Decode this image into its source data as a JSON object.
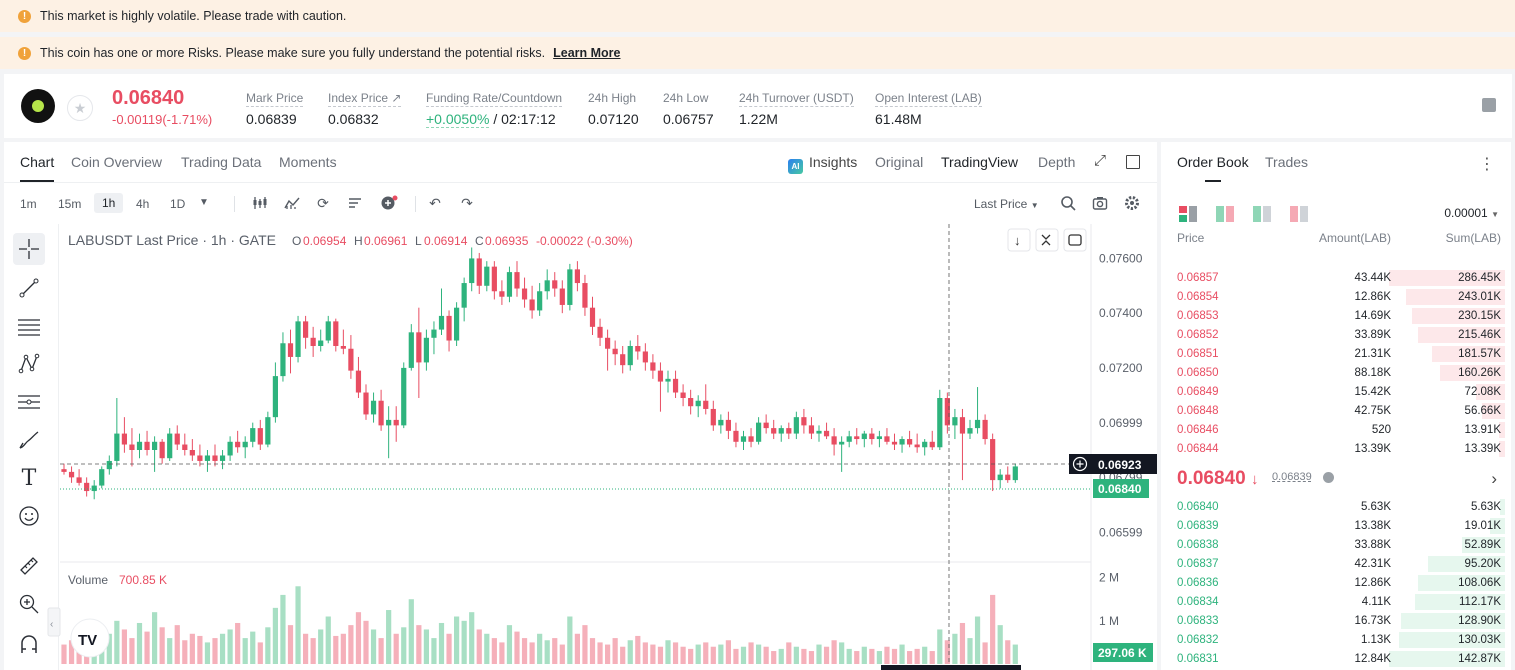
{
  "banners": {
    "volatility": "This market is highly volatile. Please trade with caution.",
    "risk": "This coin has one or more Risks. Please make sure you fully understand the potential risks.",
    "learn_more": "Learn More"
  },
  "ticker": {
    "last_price": "0.06840",
    "change": "-0.00119(-1.71%)",
    "stats": [
      {
        "label": "Mark Price",
        "value": "0.06839"
      },
      {
        "label": "Index Price ↗",
        "value": "0.06832"
      },
      {
        "label": "Funding Rate/Countdown",
        "value": "+0.0050%",
        "value2": "/ 02:17:12"
      },
      {
        "label": "24h High",
        "value": "0.07120"
      },
      {
        "label": "24h Low",
        "value": "0.06757"
      },
      {
        "label": "24h Turnover (USDT)",
        "value": "1.22M"
      },
      {
        "label": "Open Interest (LAB)",
        "value": "61.48M"
      }
    ]
  },
  "chart_tabs": [
    "Chart",
    "Coin Overview",
    "Trading Data",
    "Moments"
  ],
  "chart_views": {
    "insights": "Insights",
    "original": "Original",
    "tradingview": "TradingView",
    "depth": "Depth"
  },
  "intervals": [
    "1m",
    "15m",
    "1h",
    "4h",
    "1D"
  ],
  "selected_interval": "1h",
  "price_source": "Last Price",
  "legend": {
    "title": "LABUSDT Last Price · 1h · GATE",
    "o_lbl": "O",
    "o": "0.06954",
    "h_lbl": "H",
    "h": "0.06961",
    "l_lbl": "L",
    "l": "0.06914",
    "c_lbl": "C",
    "c": "0.06935",
    "chg": "-0.00022 (-0.30%)"
  },
  "volume_legend": {
    "label": "Volume",
    "value": "700.85 K"
  },
  "price_axis": [
    "0.07600",
    "0.07400",
    "0.07200",
    "0.06999",
    "0.06799",
    "0.06599"
  ],
  "price_tag_cross": "0.06923",
  "price_tag_last": "0.06840",
  "volume_axis": [
    "2 M",
    "1 M"
  ],
  "volume_tag": "297.06 K",
  "orderbook": {
    "tabs": [
      "Order Book",
      "Trades"
    ],
    "precision": "0.00001",
    "headers": {
      "price": "Price",
      "amount": "Amount(LAB)",
      "sum": "Sum(LAB)"
    },
    "asks": [
      {
        "price": "0.06857",
        "amount": "43.44K",
        "sum": "286.45K",
        "depth": 1.0
      },
      {
        "price": "0.06854",
        "amount": "12.86K",
        "sum": "243.01K",
        "depth": 0.85
      },
      {
        "price": "0.06853",
        "amount": "14.69K",
        "sum": "230.15K",
        "depth": 0.8
      },
      {
        "price": "0.06852",
        "amount": "33.89K",
        "sum": "215.46K",
        "depth": 0.75
      },
      {
        "price": "0.06851",
        "amount": "21.31K",
        "sum": "181.57K",
        "depth": 0.63
      },
      {
        "price": "0.06850",
        "amount": "88.18K",
        "sum": "160.26K",
        "depth": 0.56
      },
      {
        "price": "0.06849",
        "amount": "15.42K",
        "sum": "72.08K",
        "depth": 0.25
      },
      {
        "price": "0.06848",
        "amount": "42.75K",
        "sum": "56.66K",
        "depth": 0.2
      },
      {
        "price": "0.06846",
        "amount": "520",
        "sum": "13.91K",
        "depth": 0.05
      },
      {
        "price": "0.06844",
        "amount": "13.39K",
        "sum": "13.39K",
        "depth": 0.05
      }
    ],
    "mid_price": "0.06840",
    "mid_arrow": "↓",
    "mark_price": "0.06839",
    "bids": [
      {
        "price": "0.06840",
        "amount": "5.63K",
        "sum": "5.63K",
        "depth": 0.04
      },
      {
        "price": "0.06839",
        "amount": "13.38K",
        "sum": "19.01K",
        "depth": 0.13
      },
      {
        "price": "0.06838",
        "amount": "33.88K",
        "sum": "52.89K",
        "depth": 0.37
      },
      {
        "price": "0.06837",
        "amount": "42.31K",
        "sum": "95.20K",
        "depth": 0.66
      },
      {
        "price": "0.06836",
        "amount": "12.86K",
        "sum": "108.06K",
        "depth": 0.75
      },
      {
        "price": "0.06834",
        "amount": "4.11K",
        "sum": "112.17K",
        "depth": 0.78
      },
      {
        "price": "0.06833",
        "amount": "16.73K",
        "sum": "128.90K",
        "depth": 0.9
      },
      {
        "price": "0.06832",
        "amount": "1.13K",
        "sum": "130.03K",
        "depth": 0.91
      },
      {
        "price": "0.06831",
        "amount": "12.84K",
        "sum": "142.87K",
        "depth": 1.0
      }
    ]
  },
  "colors": {
    "up": "#2eb37d",
    "down": "#e84d62",
    "up_fill": "#e6f7ee",
    "down_fill": "#fde8ea"
  },
  "chart_data": {
    "type": "candlestick",
    "ylim": [
      0.0652,
      0.0766
    ],
    "candles": [
      [
        0.0683,
        0.0685,
        0.0681,
        0.0682
      ],
      [
        0.0682,
        0.0684,
        0.0678,
        0.068
      ],
      [
        0.068,
        0.0683,
        0.0677,
        0.0678
      ],
      [
        0.0678,
        0.068,
        0.0673,
        0.0675
      ],
      [
        0.0675,
        0.0679,
        0.0672,
        0.0677
      ],
      [
        0.0677,
        0.0684,
        0.0676,
        0.0683
      ],
      [
        0.0683,
        0.0688,
        0.0681,
        0.0686
      ],
      [
        0.0686,
        0.0709,
        0.0684,
        0.0696
      ],
      [
        0.0696,
        0.0702,
        0.0689,
        0.0692
      ],
      [
        0.0692,
        0.0698,
        0.0684,
        0.069
      ],
      [
        0.069,
        0.0696,
        0.0687,
        0.0693
      ],
      [
        0.0693,
        0.0697,
        0.0688,
        0.069
      ],
      [
        0.069,
        0.0695,
        0.0682,
        0.0693
      ],
      [
        0.0693,
        0.0694,
        0.0685,
        0.0687
      ],
      [
        0.0687,
        0.0698,
        0.0686,
        0.0696
      ],
      [
        0.0696,
        0.0699,
        0.069,
        0.0692
      ],
      [
        0.0692,
        0.0696,
        0.0688,
        0.069
      ],
      [
        0.069,
        0.0694,
        0.0686,
        0.0688
      ],
      [
        0.0688,
        0.0692,
        0.0684,
        0.0686
      ],
      [
        0.0686,
        0.069,
        0.0682,
        0.0688
      ],
      [
        0.0688,
        0.0692,
        0.0684,
        0.0686
      ],
      [
        0.0686,
        0.069,
        0.0683,
        0.0688
      ],
      [
        0.0688,
        0.0695,
        0.0686,
        0.0693
      ],
      [
        0.0693,
        0.0697,
        0.0689,
        0.0691
      ],
      [
        0.0691,
        0.0695,
        0.0687,
        0.0693
      ],
      [
        0.0693,
        0.07,
        0.0691,
        0.0698
      ],
      [
        0.0698,
        0.0701,
        0.069,
        0.0692
      ],
      [
        0.0692,
        0.0704,
        0.0691,
        0.0702
      ],
      [
        0.0702,
        0.0722,
        0.07,
        0.0717
      ],
      [
        0.0717,
        0.0733,
        0.0715,
        0.0729
      ],
      [
        0.0729,
        0.0734,
        0.0718,
        0.0724
      ],
      [
        0.0724,
        0.0739,
        0.0722,
        0.0737
      ],
      [
        0.0737,
        0.0739,
        0.0727,
        0.0731
      ],
      [
        0.0731,
        0.0735,
        0.0724,
        0.0728
      ],
      [
        0.0728,
        0.0734,
        0.0726,
        0.073
      ],
      [
        0.073,
        0.0739,
        0.0729,
        0.0737
      ],
      [
        0.0737,
        0.0738,
        0.0726,
        0.0728
      ],
      [
        0.0728,
        0.0734,
        0.0725,
        0.0727
      ],
      [
        0.0727,
        0.0732,
        0.0716,
        0.0719
      ],
      [
        0.0719,
        0.0724,
        0.0709,
        0.0711
      ],
      [
        0.0711,
        0.0714,
        0.0701,
        0.0703
      ],
      [
        0.0703,
        0.0711,
        0.07,
        0.0708
      ],
      [
        0.0708,
        0.0712,
        0.0697,
        0.0699
      ],
      [
        0.0699,
        0.0706,
        0.0687,
        0.0701
      ],
      [
        0.0701,
        0.0706,
        0.0693,
        0.0699
      ],
      [
        0.0699,
        0.0722,
        0.0698,
        0.072
      ],
      [
        0.072,
        0.0736,
        0.0719,
        0.0733
      ],
      [
        0.0733,
        0.0742,
        0.0709,
        0.0722
      ],
      [
        0.0722,
        0.0734,
        0.0719,
        0.0731
      ],
      [
        0.0731,
        0.0737,
        0.0725,
        0.0734
      ],
      [
        0.0734,
        0.0749,
        0.0732,
        0.0739
      ],
      [
        0.0739,
        0.0741,
        0.0726,
        0.073
      ],
      [
        0.073,
        0.0744,
        0.0728,
        0.0742
      ],
      [
        0.0742,
        0.0753,
        0.0737,
        0.0751
      ],
      [
        0.0751,
        0.0764,
        0.0748,
        0.076
      ],
      [
        0.076,
        0.0762,
        0.0747,
        0.075
      ],
      [
        0.075,
        0.0759,
        0.0748,
        0.0757
      ],
      [
        0.0757,
        0.0759,
        0.0745,
        0.0748
      ],
      [
        0.0748,
        0.0752,
        0.0743,
        0.0746
      ],
      [
        0.0746,
        0.0757,
        0.0744,
        0.0755
      ],
      [
        0.0755,
        0.0759,
        0.0746,
        0.0749
      ],
      [
        0.0749,
        0.0753,
        0.0742,
        0.0745
      ],
      [
        0.0745,
        0.075,
        0.0738,
        0.0741
      ],
      [
        0.0741,
        0.0751,
        0.0739,
        0.0748
      ],
      [
        0.0748,
        0.0756,
        0.0745,
        0.0752
      ],
      [
        0.0752,
        0.0755,
        0.0746,
        0.0749
      ],
      [
        0.0749,
        0.0752,
        0.074,
        0.0743
      ],
      [
        0.0743,
        0.0758,
        0.0741,
        0.0756
      ],
      [
        0.0756,
        0.0759,
        0.0748,
        0.0751
      ],
      [
        0.0751,
        0.0754,
        0.0739,
        0.0742
      ],
      [
        0.0742,
        0.0746,
        0.0732,
        0.0735
      ],
      [
        0.0735,
        0.0738,
        0.0728,
        0.0731
      ],
      [
        0.0731,
        0.0734,
        0.0719,
        0.0727
      ],
      [
        0.0727,
        0.073,
        0.0721,
        0.0725
      ],
      [
        0.0725,
        0.0728,
        0.0718,
        0.0721
      ],
      [
        0.0721,
        0.073,
        0.0719,
        0.0728
      ],
      [
        0.0728,
        0.0732,
        0.0723,
        0.0726
      ],
      [
        0.0726,
        0.0729,
        0.0719,
        0.0722
      ],
      [
        0.0722,
        0.0725,
        0.0716,
        0.0719
      ],
      [
        0.0719,
        0.0722,
        0.0704,
        0.0715
      ],
      [
        0.0715,
        0.0719,
        0.0711,
        0.0716
      ],
      [
        0.0716,
        0.0719,
        0.0709,
        0.0711
      ],
      [
        0.0711,
        0.0714,
        0.0706,
        0.0709
      ],
      [
        0.0709,
        0.0712,
        0.0703,
        0.0706
      ],
      [
        0.0706,
        0.071,
        0.0702,
        0.0708
      ],
      [
        0.0708,
        0.0714,
        0.0703,
        0.0705
      ],
      [
        0.0705,
        0.0708,
        0.0697,
        0.0699
      ],
      [
        0.0699,
        0.0703,
        0.0696,
        0.0701
      ],
      [
        0.0701,
        0.0704,
        0.0694,
        0.0697
      ],
      [
        0.0697,
        0.07,
        0.0691,
        0.0693
      ],
      [
        0.0693,
        0.0697,
        0.069,
        0.0695
      ],
      [
        0.0695,
        0.0698,
        0.0691,
        0.0693
      ],
      [
        0.0693,
        0.0702,
        0.0692,
        0.07
      ],
      [
        0.07,
        0.0703,
        0.0696,
        0.0698
      ],
      [
        0.0698,
        0.0701,
        0.0694,
        0.0696
      ],
      [
        0.0696,
        0.0699,
        0.0693,
        0.0698
      ],
      [
        0.0698,
        0.07,
        0.0694,
        0.0696
      ],
      [
        0.0696,
        0.0704,
        0.0694,
        0.0702
      ],
      [
        0.0702,
        0.0705,
        0.0696,
        0.0699
      ],
      [
        0.0699,
        0.0702,
        0.0694,
        0.0696
      ],
      [
        0.0696,
        0.0699,
        0.0693,
        0.0697
      ],
      [
        0.0697,
        0.07,
        0.0694,
        0.0695
      ],
      [
        0.0695,
        0.0698,
        0.0688,
        0.0692
      ],
      [
        0.0692,
        0.0695,
        0.0682,
        0.0693
      ],
      [
        0.0693,
        0.0697,
        0.0691,
        0.0695
      ],
      [
        0.0695,
        0.0698,
        0.0692,
        0.0694
      ],
      [
        0.0694,
        0.0697,
        0.0691,
        0.0696
      ],
      [
        0.0696,
        0.0698,
        0.0692,
        0.0694
      ],
      [
        0.0694,
        0.0697,
        0.0691,
        0.0695
      ],
      [
        0.0695,
        0.0698,
        0.0692,
        0.0693
      ],
      [
        0.0693,
        0.0696,
        0.069,
        0.0692
      ],
      [
        0.0692,
        0.0695,
        0.0689,
        0.0694
      ],
      [
        0.0694,
        0.0697,
        0.0691,
        0.0692
      ],
      [
        0.0692,
        0.0696,
        0.0689,
        0.0691
      ],
      [
        0.0691,
        0.0694,
        0.0688,
        0.0693
      ],
      [
        0.0693,
        0.0697,
        0.069,
        0.0691
      ],
      [
        0.0691,
        0.0712,
        0.069,
        0.0709
      ],
      [
        0.0709,
        0.0711,
        0.0696,
        0.0699
      ],
      [
        0.0699,
        0.0705,
        0.0694,
        0.0702
      ],
      [
        0.0702,
        0.0705,
        0.0679,
        0.0696
      ],
      [
        0.0696,
        0.0701,
        0.0694,
        0.0698
      ],
      [
        0.0698,
        0.0713,
        0.0696,
        0.0701
      ],
      [
        0.0701,
        0.0703,
        0.0692,
        0.0694
      ],
      [
        0.0694,
        0.0696,
        0.0675,
        0.0679
      ],
      [
        0.0679,
        0.0683,
        0.0676,
        0.0681
      ],
      [
        0.0681,
        0.0684,
        0.0678,
        0.0679
      ],
      [
        0.0679,
        0.0685,
        0.0678,
        0.0684
      ]
    ],
    "volume": [
      0.45,
      0.55,
      0.4,
      0.9,
      0.6,
      0.5,
      0.7,
      1.0,
      0.8,
      0.6,
      0.95,
      0.75,
      1.2,
      0.85,
      0.6,
      0.9,
      0.55,
      0.7,
      0.65,
      0.5,
      0.6,
      0.7,
      0.8,
      0.95,
      0.6,
      0.75,
      0.5,
      0.85,
      1.3,
      1.6,
      0.9,
      1.8,
      0.7,
      0.6,
      0.8,
      1.1,
      0.65,
      0.7,
      0.9,
      1.2,
      1.0,
      0.8,
      0.6,
      1.25,
      0.7,
      0.85,
      1.5,
      0.9,
      0.8,
      0.6,
      0.95,
      0.7,
      1.1,
      1.0,
      1.2,
      0.8,
      0.7,
      0.6,
      0.5,
      0.9,
      0.75,
      0.6,
      0.5,
      0.7,
      0.55,
      0.6,
      0.45,
      1.1,
      0.7,
      0.9,
      0.6,
      0.5,
      0.45,
      0.6,
      0.4,
      0.55,
      0.65,
      0.5,
      0.45,
      0.4,
      0.55,
      0.5,
      0.4,
      0.35,
      0.45,
      0.5,
      0.4,
      0.45,
      0.55,
      0.35,
      0.4,
      0.5,
      0.45,
      0.4,
      0.3,
      0.35,
      0.5,
      0.4,
      0.35,
      0.3,
      0.45,
      0.4,
      0.55,
      0.5,
      0.35,
      0.3,
      0.4,
      0.35,
      0.3,
      0.4,
      0.35,
      0.45,
      0.3,
      0.35,
      0.4,
      0.3,
      0.8,
      0.55,
      0.7,
      0.95,
      0.6,
      1.1,
      0.5,
      1.6,
      0.9,
      0.55,
      0.45
    ],
    "volume_unit": "M",
    "volume_ylim": [
      0,
      2.2
    ]
  }
}
